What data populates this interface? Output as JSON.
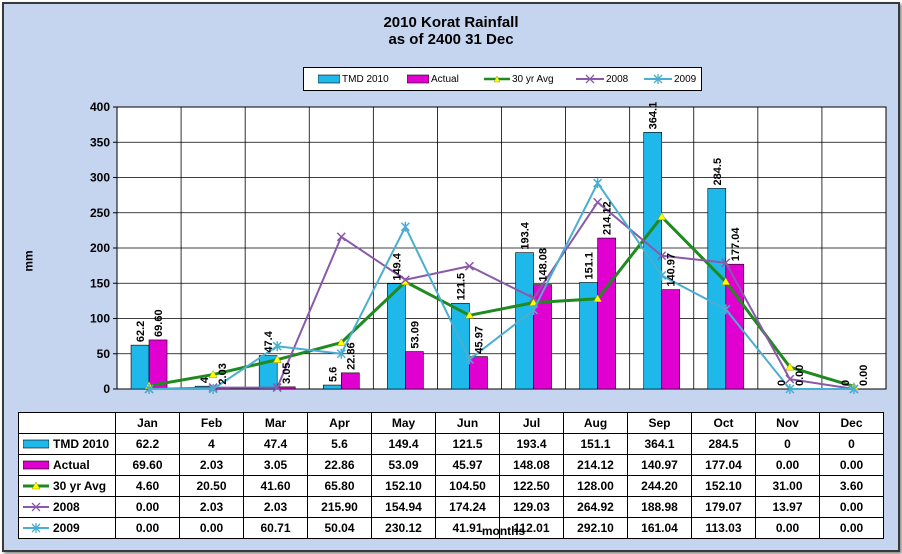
{
  "title_line1": "2010 Korat Rainfall",
  "title_line2": "as of 2400 31 Dec",
  "chart_data": {
    "type": "bar",
    "categories": [
      "Jan",
      "Feb",
      "Mar",
      "Apr",
      "May",
      "Jun",
      "Jul",
      "Aug",
      "Sep",
      "Oct",
      "Nov",
      "Dec"
    ],
    "xlabel": "months",
    "ylabel": "mm",
    "ylim": [
      0,
      400
    ],
    "yticks": [
      0,
      50,
      100,
      150,
      200,
      250,
      300,
      350,
      400
    ],
    "grid": true,
    "legend_placement": "top",
    "bar_series": [
      {
        "name": "TMD 2010",
        "color": "#1fb8ea",
        "values": [
          62.2,
          4,
          47.4,
          5.6,
          149.4,
          121.5,
          193.4,
          151.1,
          364.1,
          284.5,
          0,
          0
        ],
        "labels": [
          "62.2",
          "4",
          "47.4",
          "5.6",
          "149.4",
          "121.5",
          "193.4",
          "151.1",
          "364.1",
          "284.5",
          "0",
          "0"
        ]
      },
      {
        "name": "Actual",
        "color": "#e000d0",
        "values": [
          69.6,
          2.03,
          3.05,
          22.86,
          53.09,
          45.97,
          148.08,
          214.12,
          140.97,
          177.04,
          0.0,
          0.0
        ],
        "labels": [
          "69.60",
          "2.03",
          "3.05",
          "22.86",
          "53.09",
          "45.97",
          "148.08",
          "214.12",
          "140.97",
          "177.04",
          "0.00",
          "0.00"
        ]
      }
    ],
    "line_series": [
      {
        "name": "30 yr Avg",
        "color": "#1f8a1f",
        "marker": "triangle",
        "values": [
          4.6,
          20.5,
          41.6,
          65.8,
          152.1,
          104.5,
          122.5,
          128.0,
          244.2,
          152.1,
          31.0,
          3.6
        ],
        "labels": [
          "4.60",
          "20.50",
          "41.60",
          "65.80",
          "152.10",
          "104.50",
          "122.50",
          "128.00",
          "244.20",
          "152.10",
          "31.00",
          "3.60"
        ]
      },
      {
        "name": "2008",
        "color": "#8a5aaa",
        "marker": "x",
        "values": [
          0.0,
          2.03,
          2.03,
          215.9,
          154.94,
          174.24,
          129.03,
          264.92,
          188.98,
          179.07,
          13.97,
          0.0
        ],
        "labels": [
          "0.00",
          "2.03",
          "2.03",
          "215.90",
          "154.94",
          "174.24",
          "129.03",
          "264.92",
          "188.98",
          "179.07",
          "13.97",
          "0.00"
        ]
      },
      {
        "name": "2009",
        "color": "#4aaed0",
        "marker": "star",
        "values": [
          0.0,
          0.0,
          60.71,
          50.04,
          230.12,
          41.91,
          112.01,
          292.1,
          161.04,
          113.03,
          0.0,
          0.0
        ],
        "labels": [
          "0.00",
          "0.00",
          "60.71",
          "50.04",
          "230.12",
          "41.91",
          "112.01",
          "292.10",
          "161.04",
          "113.03",
          "0.00",
          "0.00"
        ]
      }
    ]
  }
}
